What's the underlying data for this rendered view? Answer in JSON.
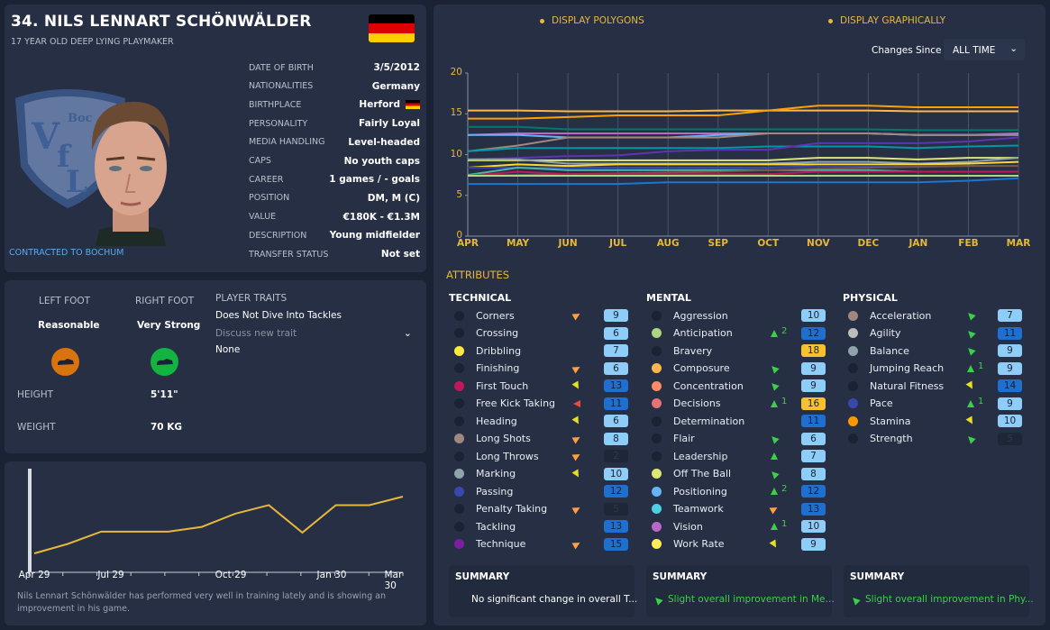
{
  "player": {
    "name": "34. NILS LENNART SCHÖNWÄLDER",
    "subtitle": "17 YEAR OLD  DEEP LYING PLAYMAKER",
    "flag_colors": [
      "#000000",
      "#dd0000",
      "#ffce00"
    ],
    "club_logo_text": "VfL Bochum",
    "contract": "CONTRACTED TO BOCHUM",
    "info": [
      {
        "label": "DATE OF BIRTH",
        "value": "3/5/2012"
      },
      {
        "label": "NATIONALITIES",
        "value": "Germany"
      },
      {
        "label": "BIRTHPLACE",
        "value": "Herford"
      },
      {
        "label": "PERSONALITY",
        "value": "Fairly Loyal"
      },
      {
        "label": "MEDIA HANDLING",
        "value": "Level-headed"
      },
      {
        "label": "CAPS",
        "value": "No youth caps"
      },
      {
        "label": "CAREER",
        "value": "1 games /    -  goals"
      },
      {
        "label": "POSITION",
        "value": "DM, M (C)"
      },
      {
        "label": "VALUE",
        "value": "€180K - €1.3M"
      },
      {
        "label": "DESCRIPTION",
        "value": "Young midfielder"
      },
      {
        "label": "TRANSFER STATUS",
        "value": "Not set"
      }
    ]
  },
  "physical_info": {
    "left_foot_label": "LEFT FOOT",
    "left_foot_value": "Reasonable",
    "left_foot_color": "#d9730d",
    "right_foot_label": "RIGHT FOOT",
    "right_foot_value": "Very Strong",
    "right_foot_color": "#12b33f",
    "height_label": "HEIGHT",
    "height_value": "5'11\"",
    "weight_label": "WEIGHT",
    "weight_value": "70 KG",
    "traits_label": "PLAYER TRAITS",
    "traits": [
      "Does Not Dive Into Tackles"
    ],
    "discuss_placeholder": "Discuss new trait",
    "discuss_value": "None"
  },
  "training": {
    "x_labels": [
      "Apr 29",
      "Jul 29",
      "Oct 29",
      "Jan 30",
      "Mar 30"
    ],
    "values": [
      20,
      30,
      43,
      43,
      43,
      48,
      62,
      71,
      42,
      71,
      71,
      80
    ],
    "line_color": "#e6b83a",
    "text": "Nils Lennart Schönwälder has performed very well in training lately and is showing an improvement in his game."
  },
  "toolbar": {
    "display_polygons": "DISPLAY POLYGONS",
    "display_graphically": "DISPLAY GRAPHICALLY",
    "changes_since_label": "Changes Since",
    "changes_since_value": "ALL TIME"
  },
  "chart_data": {
    "type": "line",
    "categories": [
      "APR",
      "MAY",
      "JUN",
      "JUL",
      "AUG",
      "SEP",
      "OCT",
      "NOV",
      "DEC",
      "JAN",
      "FEB",
      "MAR"
    ],
    "ylim": [
      0,
      20
    ],
    "yticks": [
      "0",
      "5",
      "10",
      "15",
      "20"
    ],
    "grid": "vertical",
    "series": [
      {
        "color": "#ffb74d",
        "values": [
          15.4,
          15.4,
          15.3,
          15.3,
          15.3,
          15.4,
          15.4,
          15.4,
          15.4,
          15.3,
          15.3,
          15.3
        ]
      },
      {
        "color": "#ffa000",
        "values": [
          14.4,
          14.4,
          14.6,
          14.8,
          14.8,
          14.8,
          15.4,
          16,
          16,
          15.8,
          15.8,
          15.8
        ]
      },
      {
        "color": "#00796b",
        "values": [
          13.4,
          13.4,
          13.1,
          13.1,
          13.1,
          13.1,
          13.1,
          13.1,
          13.1,
          13,
          13,
          13
        ]
      },
      {
        "color": "#ba68c8",
        "values": [
          12.4,
          12.6,
          12.6,
          12.6,
          12.6,
          12.6,
          12.6,
          12.6,
          12.6,
          12.4,
          12.4,
          12.6
        ]
      },
      {
        "color": "#64b5f6",
        "values": [
          12.4,
          12.4,
          12.1,
          12.1,
          12.1,
          12.4,
          12.6,
          12.6,
          12.6,
          12.4,
          12.4,
          12.4
        ]
      },
      {
        "color": "#a1887f",
        "values": [
          10.4,
          11.1,
          12.1,
          12.1,
          12.1,
          12.1,
          12.6,
          12.6,
          12.6,
          12.4,
          12.4,
          12.4
        ]
      },
      {
        "color": "#0097a7",
        "values": [
          10.4,
          10.8,
          10.8,
          10.8,
          10.8,
          10.8,
          11,
          11,
          11,
          10.8,
          11,
          11.1
        ]
      },
      {
        "color": "#5e35b1",
        "values": [
          9.4,
          9.6,
          9.8,
          9.9,
          10.4,
          10.6,
          10.6,
          11.4,
          11.4,
          11.4,
          11.6,
          12.1
        ]
      },
      {
        "color": "#dce775",
        "values": [
          9.3,
          9.3,
          9.3,
          9.3,
          9.3,
          9.3,
          9.3,
          9.6,
          9.6,
          9.4,
          9.6,
          9.6
        ]
      },
      {
        "color": "#90a4ae",
        "values": [
          9.4,
          9.4,
          8.9,
          8.9,
          8.9,
          8.9,
          8.9,
          9.1,
          9.1,
          8.9,
          9.1,
          9.6
        ]
      },
      {
        "color": "#fdd835",
        "values": [
          8.4,
          8.8,
          8.6,
          8.8,
          8.8,
          8.8,
          8.8,
          8.8,
          8.8,
          8.8,
          8.9,
          9.1
        ]
      },
      {
        "color": "#3949ab",
        "values": [
          8.4,
          8.4,
          8.4,
          8.4,
          8.4,
          8.4,
          8.4,
          8.6,
          8.6,
          8.6,
          8.6,
          8.6
        ]
      },
      {
        "color": "#4db6ac",
        "values": [
          7.5,
          8.4,
          8.1,
          8.1,
          8.1,
          8.1,
          8.1,
          8.1,
          8.1,
          7.9,
          7.9,
          7.9
        ]
      },
      {
        "color": "#795548",
        "values": [
          7.4,
          7.5,
          7.6,
          7.7,
          7.8,
          7.9,
          8.1,
          8.3,
          8.4,
          8.5,
          8.6,
          8.6
        ]
      },
      {
        "color": "#c2185b",
        "values": [
          7.4,
          7.9,
          7.6,
          7.6,
          7.6,
          7.6,
          7.6,
          7.9,
          7.9,
          7.9,
          7.9,
          7.9
        ]
      },
      {
        "color": "#aed581",
        "values": [
          7.4,
          7.4,
          7.4,
          7.4,
          7.4,
          7.4,
          7.4,
          7.4,
          7.4,
          7.4,
          7.4,
          7.4
        ]
      },
      {
        "color": "#1976d2",
        "values": [
          6.4,
          6.4,
          6.4,
          6.4,
          6.6,
          6.6,
          6.6,
          6.6,
          6.6,
          6.6,
          6.8,
          7.1
        ]
      }
    ]
  },
  "attributes": {
    "title": "ATTRIBUTES",
    "columns": [
      {
        "heading": "TECHNICAL",
        "items": [
          {
            "name": "Corners",
            "value": 9,
            "dot": "#1b2233",
            "trend": "up-right"
          },
          {
            "name": "Crossing",
            "value": 6,
            "dot": "#1b2233",
            "trend": ""
          },
          {
            "name": "Dribbling",
            "value": 7,
            "dot": "#ffeb3b",
            "trend": ""
          },
          {
            "name": "Finishing",
            "value": 6,
            "dot": "#1b2233",
            "trend": "up-right"
          },
          {
            "name": "First Touch",
            "value": 13,
            "dot": "#c2185b",
            "trend": "down-right"
          },
          {
            "name": "Free Kick Taking",
            "value": 11,
            "dot": "#1b2233",
            "trend": "left"
          },
          {
            "name": "Heading",
            "value": 6,
            "dot": "#1b2233",
            "trend": "down-right"
          },
          {
            "name": "Long Shots",
            "value": 8,
            "dot": "#a1887f",
            "trend": "up-right"
          },
          {
            "name": "Long Throws",
            "value": 2,
            "dot": "#1b2233",
            "trend": "up-right"
          },
          {
            "name": "Marking",
            "value": 10,
            "dot": "#90a4ae",
            "trend": "down-right"
          },
          {
            "name": "Passing",
            "value": 12,
            "dot": "#3949ab",
            "trend": ""
          },
          {
            "name": "Penalty Taking",
            "value": 5,
            "dot": "#1b2233",
            "trend": "up-right"
          },
          {
            "name": "Tackling",
            "value": 13,
            "dot": "#1b2233",
            "trend": ""
          },
          {
            "name": "Technique",
            "value": 15,
            "dot": "#7b1fa2",
            "trend": "up-right"
          }
        ]
      },
      {
        "heading": "MENTAL",
        "items": [
          {
            "name": "Aggression",
            "value": 10,
            "dot": "#1b2233",
            "trend": ""
          },
          {
            "name": "Anticipation",
            "value": 12,
            "dot": "#aed581",
            "trend": "up",
            "change": "2"
          },
          {
            "name": "Bravery",
            "value": 18,
            "dot": "#1b2233",
            "trend": ""
          },
          {
            "name": "Composure",
            "value": 9,
            "dot": "#ffb74d",
            "trend": "up-left"
          },
          {
            "name": "Concentration",
            "value": 9,
            "dot": "#ff8a65",
            "trend": "up-left"
          },
          {
            "name": "Decisions",
            "value": 16,
            "dot": "#e57373",
            "trend": "up",
            "change": "1"
          },
          {
            "name": "Determination",
            "value": 11,
            "dot": "#1b2233",
            "trend": ""
          },
          {
            "name": "Flair",
            "value": 6,
            "dot": "#1b2233",
            "trend": "up-left"
          },
          {
            "name": "Leadership",
            "value": 7,
            "dot": "#1b2233",
            "trend": "up"
          },
          {
            "name": "Off The Ball",
            "value": 8,
            "dot": "#dce775",
            "trend": "up-left"
          },
          {
            "name": "Positioning",
            "value": 12,
            "dot": "#64b5f6",
            "trend": "up",
            "change": "2"
          },
          {
            "name": "Teamwork",
            "value": 13,
            "dot": "#4dd0e1",
            "trend": "up-right"
          },
          {
            "name": "Vision",
            "value": 10,
            "dot": "#ba68c8",
            "trend": "up",
            "change": "1"
          },
          {
            "name": "Work Rate",
            "value": 9,
            "dot": "#ffee58",
            "trend": "down-right"
          }
        ]
      },
      {
        "heading": "PHYSICAL",
        "items": [
          {
            "name": "Acceleration",
            "value": 7,
            "dot": "#a1887f",
            "trend": "up-left"
          },
          {
            "name": "Agility",
            "value": 11,
            "dot": "#bdbdbd",
            "trend": "up-left"
          },
          {
            "name": "Balance",
            "value": 9,
            "dot": "#90a4ae",
            "trend": "up-left"
          },
          {
            "name": "Jumping Reach",
            "value": 9,
            "dot": "#1b2233",
            "trend": "up",
            "change": "1"
          },
          {
            "name": "Natural Fitness",
            "value": 14,
            "dot": "#1b2233",
            "trend": "down-right"
          },
          {
            "name": "Pace",
            "value": 9,
            "dot": "#3949ab",
            "trend": "up",
            "change": "1"
          },
          {
            "name": "Stamina",
            "value": 10,
            "dot": "#ff9800",
            "trend": "down-right"
          },
          {
            "name": "Strength",
            "value": 5,
            "dot": "#1b2233",
            "trend": "up-left"
          }
        ]
      }
    ],
    "summaries": [
      {
        "heading": "SUMMARY",
        "text": "No significant change in overall T...",
        "trend": ""
      },
      {
        "heading": "SUMMARY",
        "text": "Slight overall improvement in Men...",
        "trend": "up-left"
      },
      {
        "heading": "SUMMARY",
        "text": "Slight overall improvement in Phy...",
        "trend": "up-left"
      }
    ]
  }
}
